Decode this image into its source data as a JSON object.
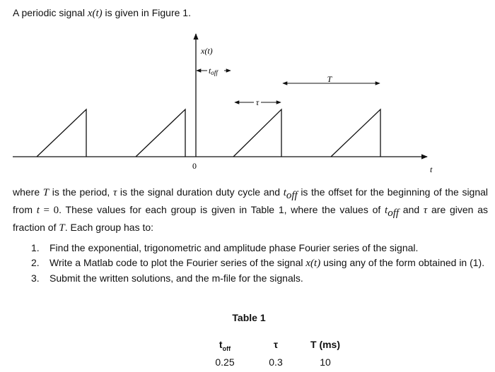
{
  "intro": [
    "A periodic signal ",
    "x(t)",
    " is given in Figure 1."
  ],
  "figure": {
    "y_label": "x(t)",
    "x_label": "t",
    "origin_label": "0",
    "offset_label": "t",
    "offset_sub": "off",
    "duration_label": "τ",
    "period_label": "T"
  },
  "paragraph": [
    "where ",
    "T",
    " is the period, ",
    "τ",
    " is the signal duration duty cycle and ",
    "t",
    "off",
    " is the offset for the beginning of the signal from ",
    "t",
    " = 0",
    ". These values for each group is given in Table 1, where the values of ",
    "t",
    "off",
    " and ",
    "τ",
    " are given as fraction of ",
    "T",
    ". Each group has to:"
  ],
  "tasks": [
    {
      "number": "1.",
      "text": [
        "Find the exponential, trigonometric and amplitude phase Fourier series of the signal."
      ]
    },
    {
      "number": "2.",
      "text": [
        "Write a Matlab code to plot the Fourier series of the signal ",
        "x(t)",
        " using any of the form obtained in (1)."
      ]
    },
    {
      "number": "3.",
      "text": [
        "Submit the written solutions, and the m-file for the signals."
      ]
    }
  ],
  "table": {
    "title": "Table 1",
    "header": [
      [
        "t",
        "off"
      ],
      "τ",
      "T (ms)"
    ],
    "rows": [
      [
        "0.25",
        "0.3",
        "10"
      ]
    ]
  }
}
